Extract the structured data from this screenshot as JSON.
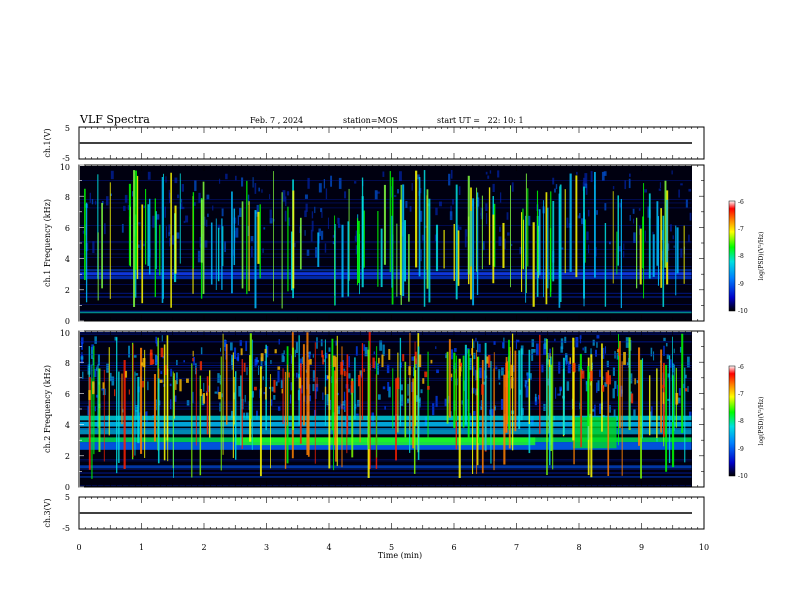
{
  "header": {
    "title": "VLF Spectra",
    "date": "Feb. 7 , 2024",
    "station": "station=MOS",
    "start_ut": "start UT =   22: 10: 1"
  },
  "chart_data": [
    {
      "type": "line",
      "panel": "ch1-waveform",
      "ylabel": "ch.1(V)",
      "ylim": [
        -5,
        5
      ],
      "yticks": [
        "5",
        "-5"
      ],
      "xlim": [
        0,
        10
      ],
      "series": [
        {
          "x": [
            0,
            9.8
          ],
          "y": [
            0,
            0
          ]
        }
      ]
    },
    {
      "type": "heatmap",
      "panel": "ch1-spectrogram",
      "ylabel": "ch.1 Frequency (kHz)",
      "ylim": [
        0,
        10
      ],
      "yticks": [
        "0",
        "2",
        "4",
        "6",
        "8",
        "10"
      ],
      "xlim": [
        0,
        10
      ],
      "data_xmax": 9.8,
      "colorbar": {
        "label": "log(PSD)(V²/Hz)",
        "range": [
          -10,
          -6
        ],
        "ticks": [
          "-6",
          "-7",
          "-8",
          "-9",
          "-10"
        ]
      }
    },
    {
      "type": "heatmap",
      "panel": "ch2-spectrogram",
      "ylabel": "ch.2 Frequency (kHz)",
      "ylim": [
        0,
        10
      ],
      "yticks": [
        "0",
        "2",
        "4",
        "6",
        "8",
        "10"
      ],
      "xlim": [
        0,
        10
      ],
      "data_xmax": 9.8,
      "colorbar": {
        "label": "log(PSD)(V²/Hz)",
        "range": [
          -10,
          -6
        ],
        "ticks": [
          "-6",
          "-7",
          "-8",
          "-9",
          "-10"
        ]
      }
    },
    {
      "type": "line",
      "panel": "ch3-waveform",
      "ylabel": "ch.3(V)",
      "ylim": [
        -5,
        5
      ],
      "yticks": [
        "5",
        "-5"
      ],
      "xlim": [
        0,
        10
      ],
      "xlabel": "Time (min)",
      "xticks": [
        "0",
        "1",
        "2",
        "3",
        "4",
        "5",
        "6",
        "7",
        "8",
        "9",
        "10"
      ],
      "series": [
        {
          "x": [
            0,
            9.8
          ],
          "y": [
            0,
            0
          ]
        }
      ]
    }
  ],
  "colors": {
    "background_spectrum": "#000010",
    "colormap": [
      "#000000",
      "#0000c8",
      "#0080ff",
      "#00e0e0",
      "#00ff00",
      "#ffff00",
      "#ff8000",
      "#ff0000",
      "#ffffff"
    ]
  }
}
